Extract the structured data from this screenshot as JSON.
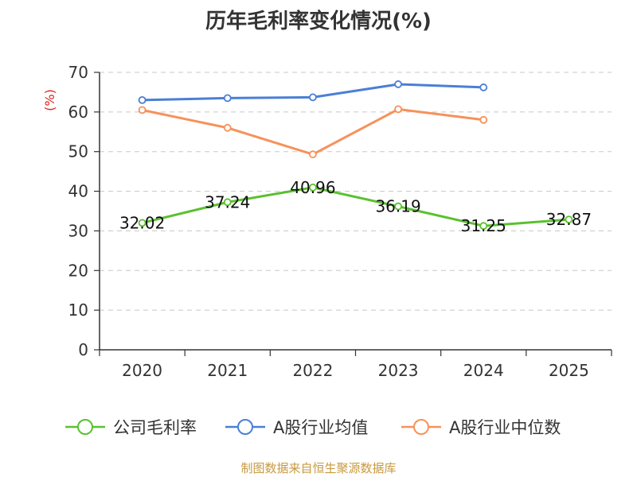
{
  "chart_data": {
    "type": "line",
    "title": "历年毛利率变化情况(%)",
    "ylabel": "(%)",
    "xlabel": "",
    "categories": [
      "2020",
      "2021",
      "2022",
      "2023",
      "2024",
      "2025"
    ],
    "ylim": [
      0,
      70
    ],
    "yticks": [
      0,
      10,
      20,
      30,
      40,
      50,
      60,
      70
    ],
    "grid": true,
    "legend_position": "bottom",
    "series": [
      {
        "name": "公司毛利率",
        "color": "#5ac12e",
        "values": [
          32.02,
          37.24,
          40.96,
          36.19,
          31.25,
          32.87
        ],
        "labels": [
          "32.02",
          "37.24",
          "40.96",
          "36.19",
          "31.25",
          "32.87"
        ],
        "show_labels": true
      },
      {
        "name": "A股行业均值",
        "color": "#4a7fd6",
        "values": [
          63.0,
          63.5,
          63.7,
          67.0,
          66.2,
          null
        ],
        "show_labels": false
      },
      {
        "name": "A股行业中位数",
        "color": "#f7915a",
        "values": [
          60.5,
          56.0,
          49.3,
          60.7,
          58.0,
          null
        ],
        "show_labels": false
      }
    ]
  },
  "source": "制图数据来自恒生聚源数据库"
}
